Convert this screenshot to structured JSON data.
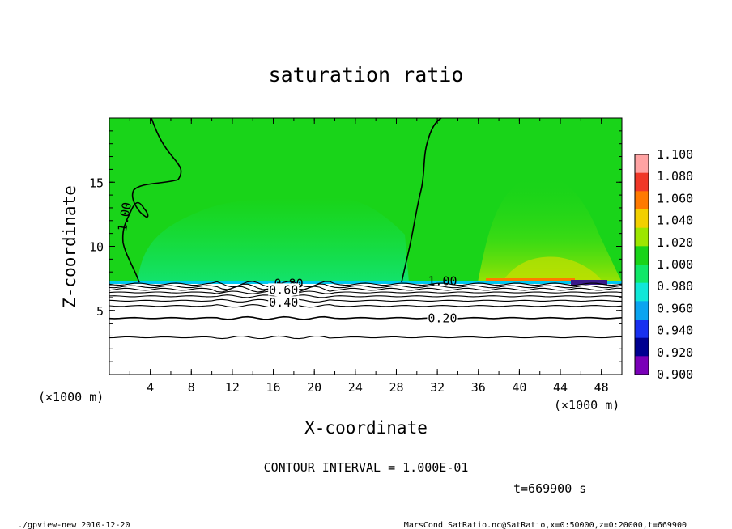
{
  "chart_data": {
    "type": "heatmap",
    "title": "saturation ratio",
    "xlabel": "X-coordinate",
    "ylabel": "Z-coordinate",
    "x_unit": "(×1000 m)",
    "y_unit": "(×1000 m)",
    "xlim": [
      0,
      50
    ],
    "ylim": [
      0,
      20
    ],
    "x_ticks": [
      4,
      8,
      12,
      16,
      20,
      24,
      28,
      32,
      36,
      40,
      44,
      48
    ],
    "y_ticks": [
      5,
      10,
      15
    ],
    "contour_labels": [
      {
        "text": "1.00",
        "x": 1.5,
        "z": 12.3
      },
      {
        "text": "1.00",
        "x": 32.5,
        "z": 7.3
      },
      {
        "text": "0.80",
        "x": 17.5,
        "z": 7.1
      },
      {
        "text": "0.60",
        "x": 17.0,
        "z": 6.6
      },
      {
        "text": "0.40",
        "x": 17.0,
        "z": 5.6
      },
      {
        "text": "0.20",
        "x": 32.5,
        "z": 4.4
      }
    ],
    "contour_interval": "CONTOUR INTERVAL = 1.000E-01",
    "time_label": "t=669900 s",
    "colorbar": {
      "levels": [
        "1.100",
        "1.080",
        "1.060",
        "1.040",
        "1.020",
        "1.000",
        "0.980",
        "0.960",
        "0.940",
        "0.920",
        "0.900"
      ],
      "colors": [
        "#ffa3a3",
        "#f03828",
        "#ff7a00",
        "#f2d000",
        "#9de600",
        "#19d419",
        "#10e868",
        "#10e8d8",
        "#0aa4f0",
        "#1830f0",
        "#000090",
        "#7a00b8"
      ]
    }
  },
  "footer": {
    "left": "./gpview-new  2010-12-20",
    "right": "MarsCond_SatRatio.nc@SatRatio,x=0:50000,z=0:20000,t=669900"
  }
}
